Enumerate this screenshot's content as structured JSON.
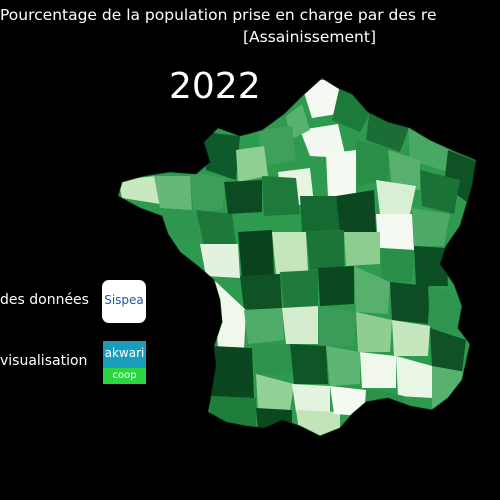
{
  "title": {
    "line1": "Pourcentage de la population prise en charge par des re",
    "line2": "[Assainissement]"
  },
  "year": "2022",
  "credits": {
    "data_label": "des données",
    "viz_label": "visualisation"
  },
  "logos": {
    "sispea": "Sispea",
    "akwari_top": "akwari",
    "akwari_bottom": "coop"
  },
  "map": {
    "region": "France",
    "color_scale": [
      "#f7fcf5",
      "#c7e9c0",
      "#74c476",
      "#31a354",
      "#006d2c",
      "#00441b"
    ]
  }
}
